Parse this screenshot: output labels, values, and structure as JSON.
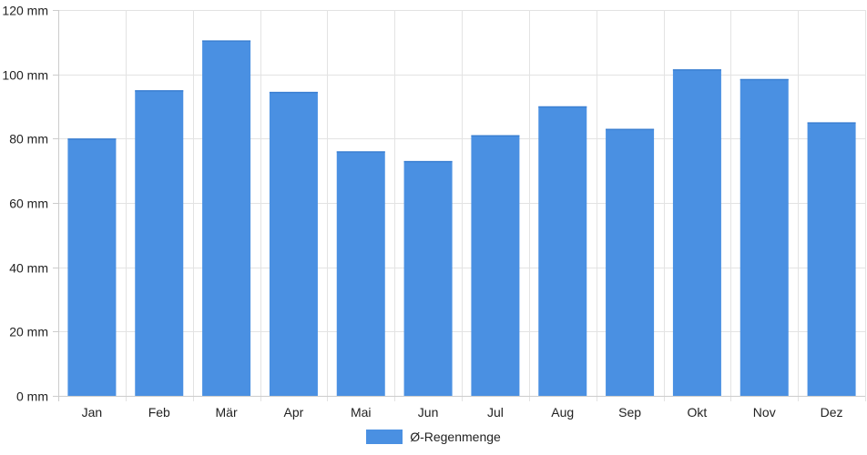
{
  "chart_data": {
    "type": "bar",
    "categories": [
      "Jan",
      "Feb",
      "Mär",
      "Apr",
      "Mai",
      "Jun",
      "Jul",
      "Aug",
      "Sep",
      "Okt",
      "Nov",
      "Dez"
    ],
    "series": [
      {
        "name": "Ø-Regenmenge",
        "values": [
          80,
          95,
          110.5,
          94.5,
          76,
          73,
          81,
          90,
          83,
          101.5,
          98.5,
          85
        ],
        "color": "#4a90e2"
      }
    ],
    "y_ticks": [
      "0 mm",
      "20 mm",
      "40 mm",
      "60 mm",
      "80 mm",
      "100 mm",
      "120 mm"
    ],
    "ylim": [
      0,
      120
    ],
    "grid": true,
    "legend_position": "bottom"
  }
}
